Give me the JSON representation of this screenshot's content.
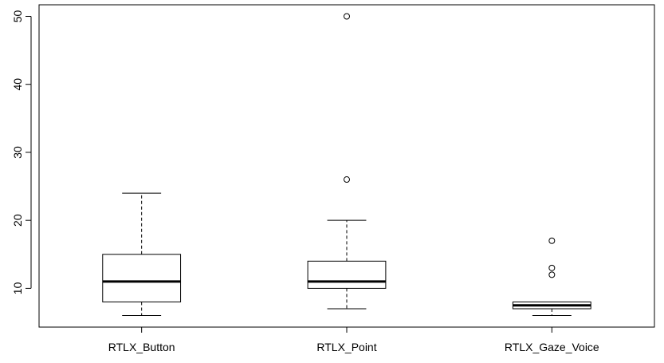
{
  "chart_data": {
    "type": "boxplot",
    "title": "",
    "xlabel": "",
    "ylabel": "",
    "ylim": [
      4.3,
      51.7
    ],
    "yticks": [
      10,
      20,
      30,
      40,
      50
    ],
    "grid": false,
    "legend": "none",
    "categories": [
      "RTLX_Button",
      "RTLX_Point",
      "RTLX_Gaze_Voice"
    ],
    "boxes": [
      {
        "name": "RTLX_Button",
        "whisker_low": 6,
        "q1": 8,
        "median": 11,
        "q3": 15,
        "whisker_high": 24,
        "outliers": []
      },
      {
        "name": "RTLX_Point",
        "whisker_low": 7,
        "q1": 10,
        "median": 11,
        "q3": 14,
        "whisker_high": 20,
        "outliers": [
          26,
          50
        ]
      },
      {
        "name": "RTLX_Gaze_Voice",
        "whisker_low": 6,
        "q1": 7,
        "median": 7.5,
        "q3": 8,
        "whisker_high": 8,
        "outliers": [
          12,
          13,
          17
        ]
      }
    ]
  }
}
